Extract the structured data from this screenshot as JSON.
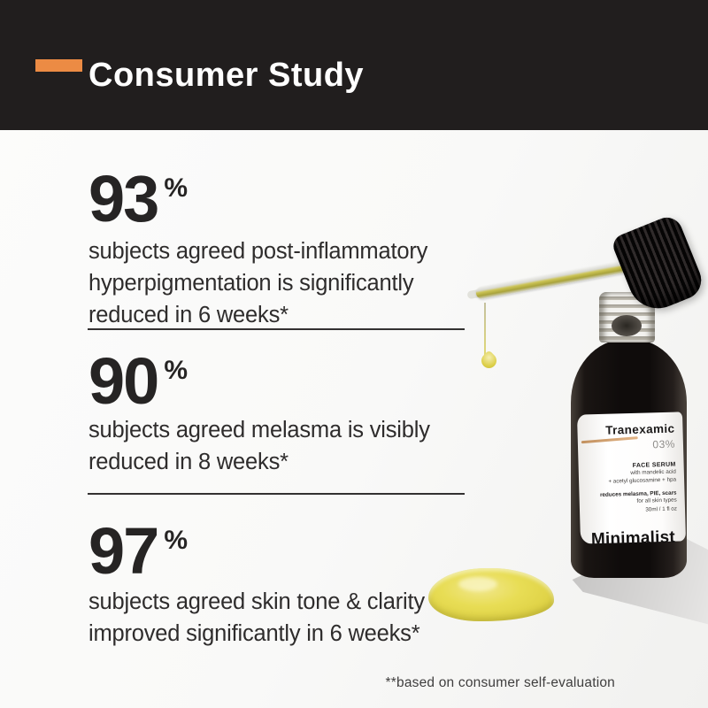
{
  "header": {
    "title": "Consumer Study",
    "accent_color": "#ec8b44",
    "bg_color": "#211e1e"
  },
  "stats": [
    {
      "value": "93",
      "unit": "%",
      "description": "subjects agreed post-inflammatory hyperpigmentation is significantly reduced in 6 weeks*"
    },
    {
      "value": "90",
      "unit": "%",
      "description": "subjects agreed melasma is visibly reduced in 8 weeks*"
    },
    {
      "value": "97",
      "unit": "%",
      "description": "subjects agreed skin tone & clarity improved significantly in 6 weeks*"
    }
  ],
  "product": {
    "label": {
      "name": "Tranexamic",
      "concentration": "03%",
      "type": "FACE SERUM",
      "ingredients_line1": "with mandelic acid",
      "ingredients_line2": "+ acetyl glucosamine + hpa",
      "benefits": "reduces melasma, PIE, scars",
      "suitability": "for all skin types",
      "volume": "30ml / 1 fl oz",
      "brand": "Minimalist"
    },
    "serum_color": "#e4d84d"
  },
  "footnote": "**based on consumer self-evaluation"
}
